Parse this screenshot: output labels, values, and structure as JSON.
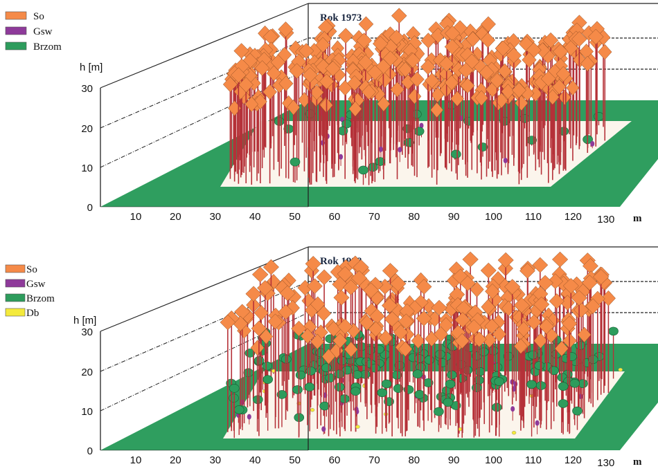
{
  "colors": {
    "So": "#f58a48",
    "Gsw": "#8e3a9a",
    "Brzom": "#2d9c5c",
    "Db": "#f4ea3c",
    "trunk": "#b53138",
    "ground": "#2f9e5f",
    "plot": "#fbf5ec",
    "axis": "#222222"
  },
  "chart_data": [
    {
      "type": "scatter",
      "title": "Rok 1973",
      "ylabel": "h [m]",
      "xlabel": "m",
      "y_ticks": [
        "0",
        "10",
        "20",
        "30"
      ],
      "x_ticks": [
        "10",
        "20",
        "30",
        "40",
        "50",
        "60",
        "70",
        "80",
        "90",
        "100",
        "110",
        "120",
        "130"
      ],
      "ylim": [
        0,
        30
      ],
      "xlim": [
        0,
        130
      ],
      "legend": [
        {
          "label": "So",
          "color_key": "So"
        },
        {
          "label": "Gsw",
          "color_key": "Gsw"
        },
        {
          "label": "Brzom",
          "color_key": "Brzom"
        }
      ],
      "legend_position": "top-left",
      "series": [
        {
          "name": "So",
          "tree_count_approx": 340,
          "height_range_m": [
            18,
            28
          ]
        },
        {
          "name": "Gsw",
          "tree_count_approx": 12,
          "height_range_m": [
            1,
            4
          ]
        },
        {
          "name": "Brzom",
          "tree_count_approx": 25,
          "height_range_m": [
            1,
            6
          ]
        }
      ]
    },
    {
      "type": "scatter",
      "title": "Rok 1998",
      "ylabel": "h [m]",
      "xlabel": "m",
      "y_ticks": [
        "0",
        "10",
        "20",
        "30"
      ],
      "x_ticks": [
        "10",
        "20",
        "30",
        "40",
        "50",
        "60",
        "70",
        "80",
        "90",
        "100",
        "110",
        "120",
        "130"
      ],
      "ylim": [
        0,
        30
      ],
      "xlim": [
        0,
        130
      ],
      "legend": [
        {
          "label": "So",
          "color_key": "So"
        },
        {
          "label": "Gsw",
          "color_key": "Gsw"
        },
        {
          "label": "Brzom",
          "color_key": "Brzom"
        },
        {
          "label": "Db",
          "color_key": "Db"
        }
      ],
      "legend_position": "top-left",
      "series": [
        {
          "name": "So",
          "tree_count_approx": 230,
          "height_range_m": [
            20,
            30
          ]
        },
        {
          "name": "Gsw",
          "tree_count_approx": 20,
          "height_range_m": [
            1,
            5
          ]
        },
        {
          "name": "Brzom",
          "tree_count_approx": 160,
          "height_range_m": [
            4,
            14
          ]
        },
        {
          "name": "Db",
          "tree_count_approx": 15,
          "height_range_m": [
            0,
            2
          ]
        }
      ]
    }
  ]
}
